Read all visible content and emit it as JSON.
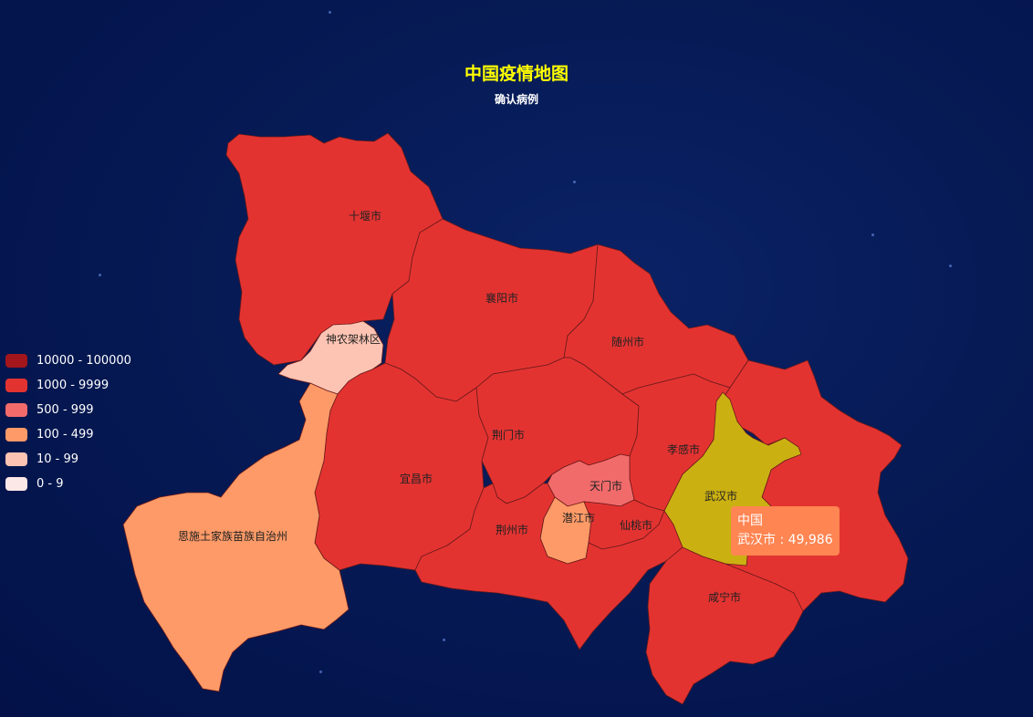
{
  "title": "中国疫情地图",
  "subtitle": "确认病例",
  "legend": {
    "items": [
      {
        "label": "10000 - 100000",
        "color": "#a2161c"
      },
      {
        "label": "1000 - 9999",
        "color": "#e33331"
      },
      {
        "label": "500 - 999",
        "color": "#f26b6b"
      },
      {
        "label": "100 - 499",
        "color": "#fd9a67"
      },
      {
        "label": "10 - 99",
        "color": "#fec4b3"
      },
      {
        "label": "0 - 9",
        "color": "#fde8e8"
      }
    ]
  },
  "regions": {
    "shiyan": "十堰市",
    "xiangyang": "襄阳市",
    "suizhou": "随州市",
    "shennongjia": "神农架林区",
    "yichang": "宜昌市",
    "jingmen": "荆门市",
    "xiaogan": "孝感市",
    "tianmen": "天门市",
    "wuhan": "武汉市",
    "enshi": "恩施土家族苗族自治州",
    "qianjiang": "潜江市",
    "jingzhou": "荆州市",
    "xiantao": "仙桃市",
    "xianning": "咸宁市"
  },
  "highlight_color": "#cbb012",
  "tooltip": {
    "series": "中国",
    "line": "武汉市 : 49,986"
  }
}
